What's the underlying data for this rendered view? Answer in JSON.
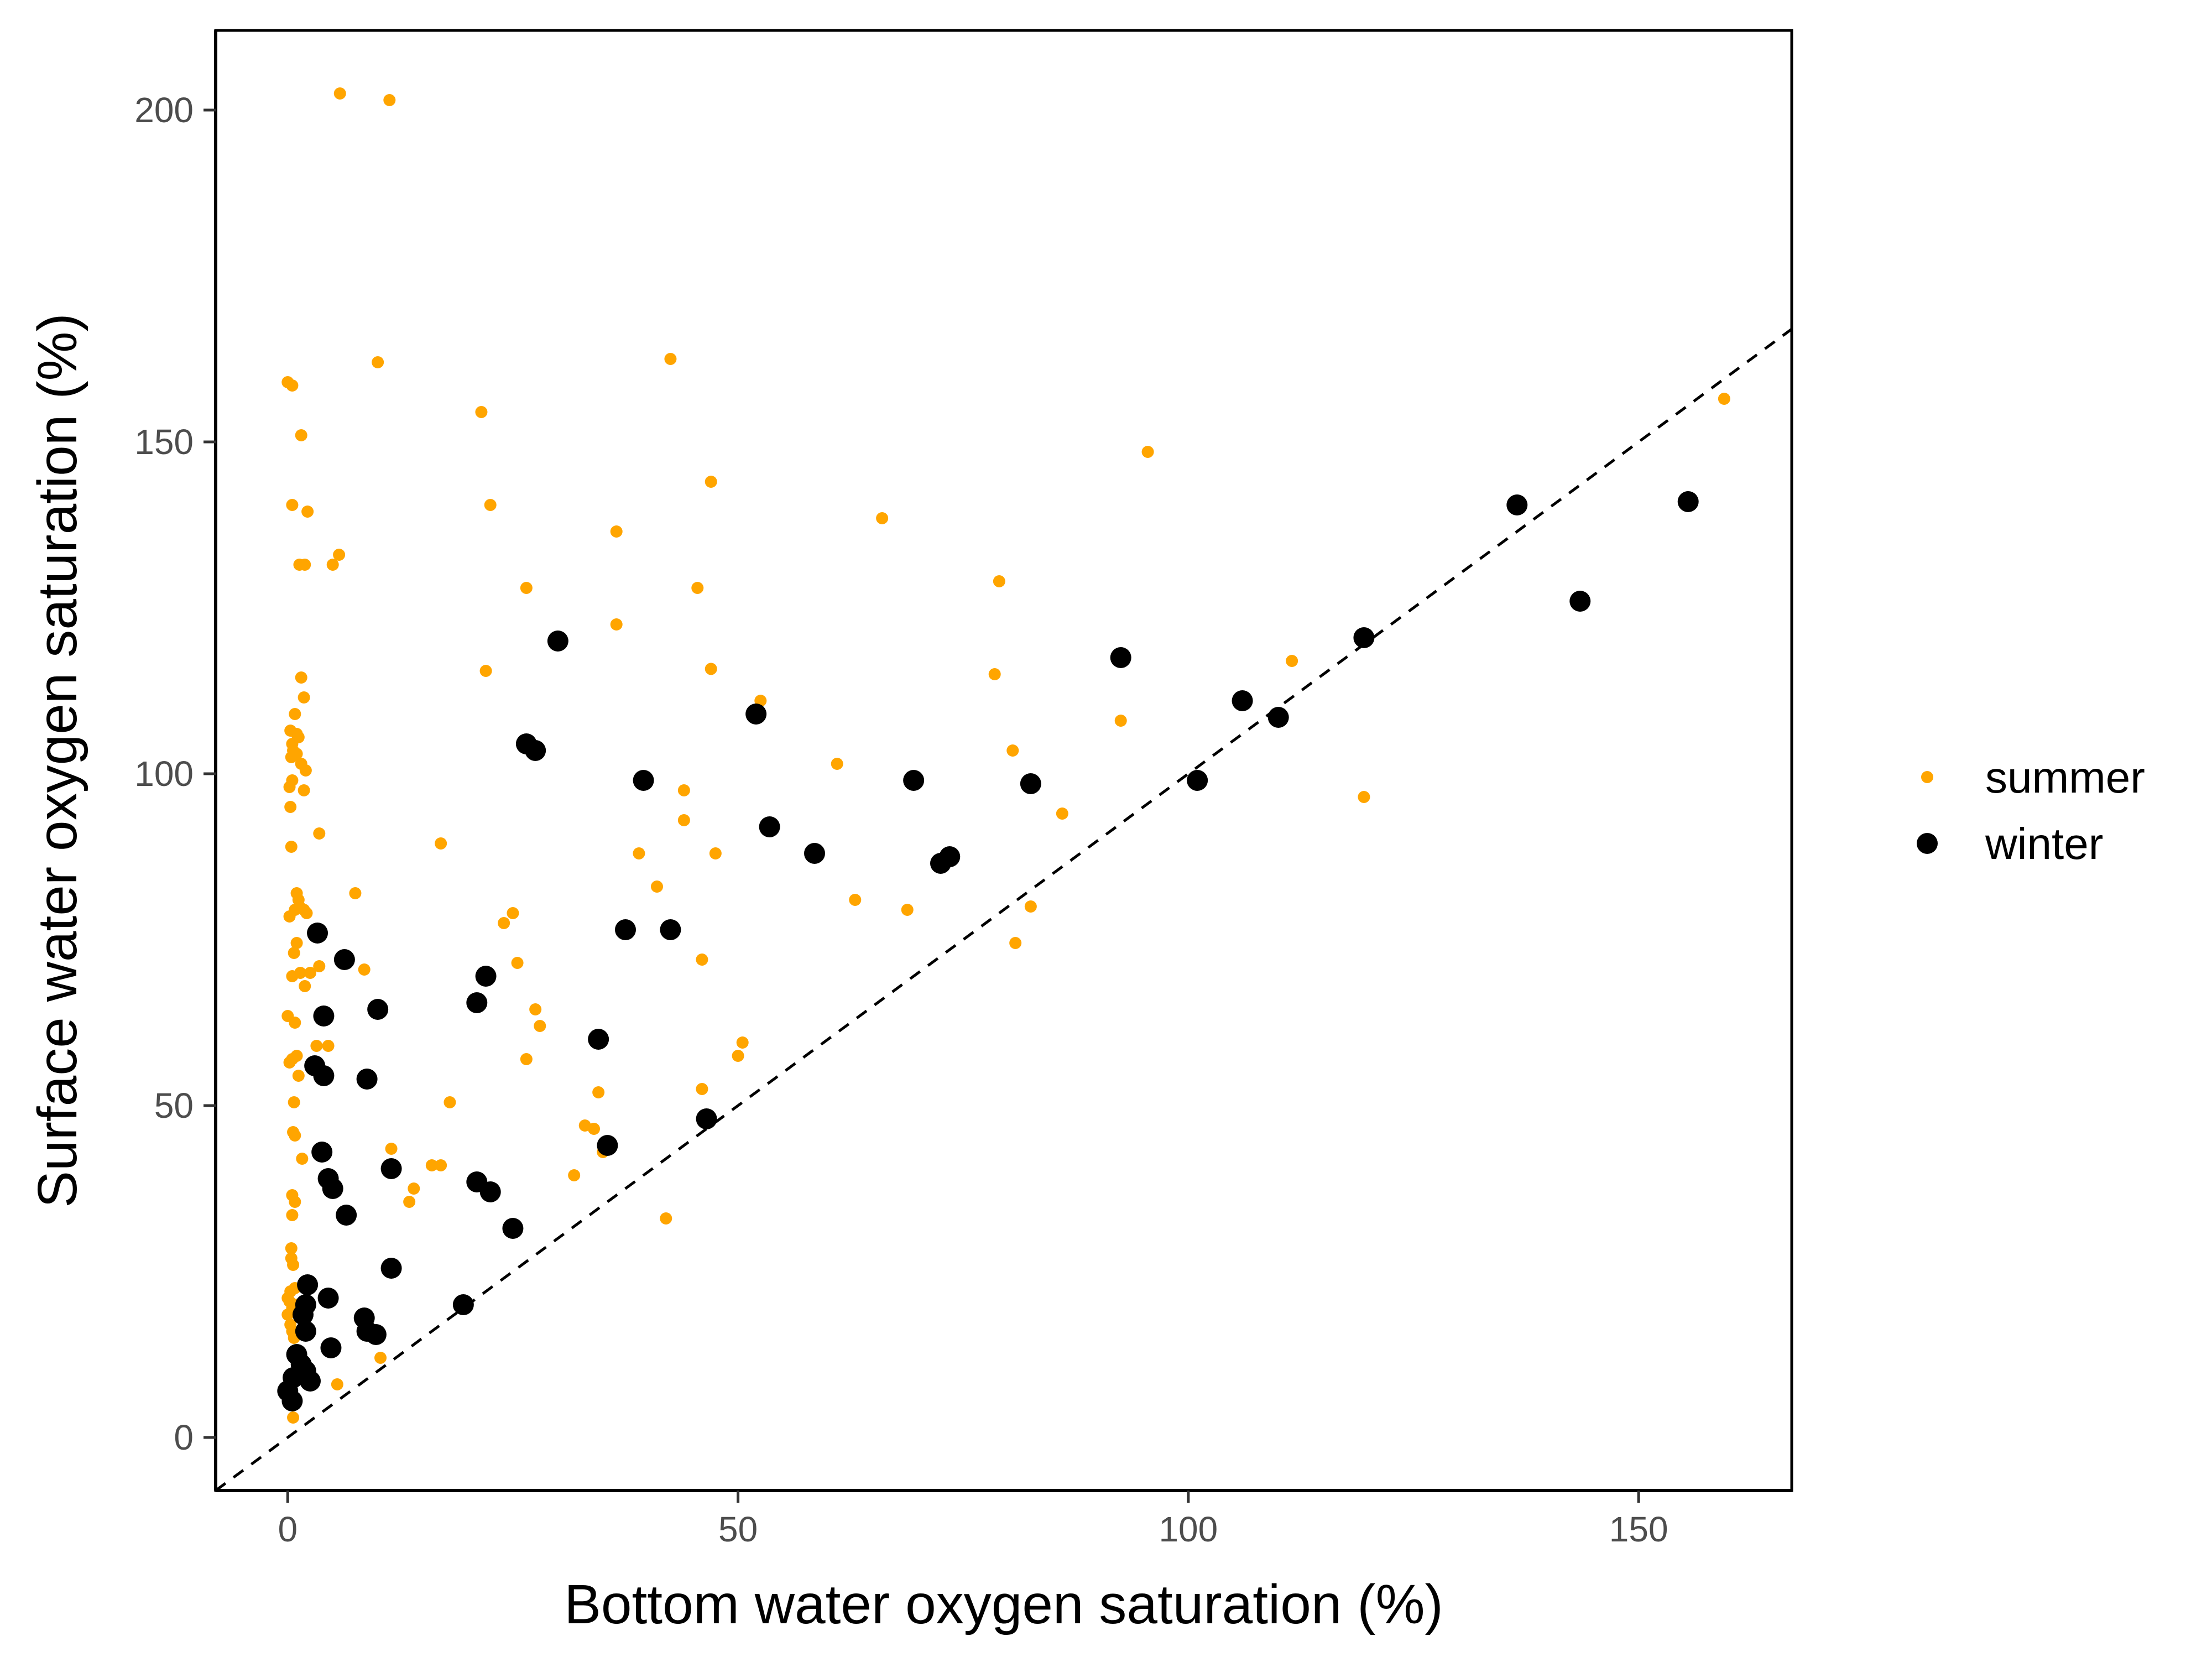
{
  "chart_data": {
    "type": "scatter",
    "title": "",
    "xlabel": "Bottom water oxygen saturation (%)",
    "ylabel": "Surface water oxygen saturation (%)",
    "xlim": [
      -8,
      167
    ],
    "ylim": [
      -8,
      212
    ],
    "x_ticks": [
      0,
      50,
      100,
      150
    ],
    "y_ticks": [
      0,
      50,
      100,
      150,
      200
    ],
    "x_tick_labels": [
      "0",
      "50",
      "100",
      "150"
    ],
    "y_tick_labels": [
      "0",
      "50",
      "100",
      "150",
      "200"
    ],
    "grid": false,
    "legend_position": "right",
    "reference_line": {
      "style": "dashed",
      "slope": 1,
      "intercept": 0,
      "color": "#000000"
    },
    "series": [
      {
        "name": "summer",
        "color": "#FFA500",
        "marker_size": "small",
        "points": [
          [
            5.8,
            202.5
          ],
          [
            11.3,
            201.5
          ],
          [
            42.5,
            162.5
          ],
          [
            10.0,
            162.0
          ],
          [
            0.0,
            159.0
          ],
          [
            0.5,
            158.5
          ],
          [
            21.5,
            154.5
          ],
          [
            1.5,
            151.0
          ],
          [
            95.5,
            148.5
          ],
          [
            159.5,
            156.5
          ],
          [
            47.0,
            144.0
          ],
          [
            0.5,
            140.5
          ],
          [
            22.5,
            140.5
          ],
          [
            2.2,
            139.5
          ],
          [
            66.0,
            138.5
          ],
          [
            36.5,
            136.5
          ],
          [
            5.7,
            133.0
          ],
          [
            5.0,
            131.5
          ],
          [
            1.3,
            131.5
          ],
          [
            1.9,
            131.5
          ],
          [
            79.0,
            129.0
          ],
          [
            26.5,
            128.0
          ],
          [
            45.5,
            128.0
          ],
          [
            36.5,
            122.5
          ],
          [
            111.5,
            117.0
          ],
          [
            92.5,
            117.5
          ],
          [
            1.5,
            114.5
          ],
          [
            22.0,
            115.5
          ],
          [
            47.0,
            115.8
          ],
          [
            78.5,
            115.0
          ],
          [
            1.8,
            111.5
          ],
          [
            52.5,
            111.0
          ],
          [
            0.8,
            109.0
          ],
          [
            92.5,
            108.0
          ],
          [
            0.3,
            106.5
          ],
          [
            1.0,
            106.0
          ],
          [
            0.5,
            104.5
          ],
          [
            1.2,
            105.5
          ],
          [
            0.6,
            103.5
          ],
          [
            0.4,
            102.5
          ],
          [
            1.0,
            103.0
          ],
          [
            80.5,
            103.5
          ],
          [
            1.5,
            101.5
          ],
          [
            2.0,
            100.5
          ],
          [
            61.0,
            101.5
          ],
          [
            0.5,
            99.0
          ],
          [
            0.2,
            98.0
          ],
          [
            1.8,
            97.5
          ],
          [
            44.0,
            97.5
          ],
          [
            119.5,
            96.5
          ],
          [
            0.3,
            95.0
          ],
          [
            86.0,
            94.0
          ],
          [
            44.0,
            93.0
          ],
          [
            3.5,
            91.0
          ],
          [
            0.4,
            89.0
          ],
          [
            17.0,
            89.5
          ],
          [
            39.0,
            88.0
          ],
          [
            47.5,
            88.0
          ],
          [
            1.0,
            82.0
          ],
          [
            7.5,
            82.0
          ],
          [
            41.0,
            83.0
          ],
          [
            1.2,
            81.0
          ],
          [
            63.0,
            81.0
          ],
          [
            0.8,
            79.5
          ],
          [
            1.3,
            80.0
          ],
          [
            1.8,
            79.5
          ],
          [
            2.1,
            79.0
          ],
          [
            0.2,
            78.5
          ],
          [
            25.0,
            79.0
          ],
          [
            68.8,
            79.5
          ],
          [
            82.5,
            80.0
          ],
          [
            24.0,
            77.5
          ],
          [
            80.8,
            74.5
          ],
          [
            1.0,
            74.5
          ],
          [
            0.7,
            73.0
          ],
          [
            46.0,
            72.0
          ],
          [
            25.5,
            71.5
          ],
          [
            3.5,
            71.0
          ],
          [
            8.5,
            70.5
          ],
          [
            0.5,
            69.5
          ],
          [
            1.4,
            70.0
          ],
          [
            2.5,
            70.0
          ],
          [
            1.9,
            68.0
          ],
          [
            27.5,
            64.5
          ],
          [
            0.0,
            63.5
          ],
          [
            0.8,
            62.5
          ],
          [
            28.0,
            62.0
          ],
          [
            50.5,
            59.5
          ],
          [
            3.2,
            59.0
          ],
          [
            4.5,
            59.0
          ],
          [
            50.0,
            57.5
          ],
          [
            0.5,
            57.0
          ],
          [
            26.5,
            57.0
          ],
          [
            1.0,
            57.5
          ],
          [
            2.6,
            56.0
          ],
          [
            0.2,
            56.5
          ],
          [
            1.2,
            54.5
          ],
          [
            34.5,
            52.0
          ],
          [
            46.0,
            52.5
          ],
          [
            0.7,
            50.5
          ],
          [
            18.0,
            50.5
          ],
          [
            33.0,
            47.0
          ],
          [
            34.0,
            46.5
          ],
          [
            0.6,
            46.0
          ],
          [
            0.8,
            45.5
          ],
          [
            11.5,
            43.5
          ],
          [
            35.0,
            43.0
          ],
          [
            1.6,
            42.0
          ],
          [
            17.0,
            41.0
          ],
          [
            16.0,
            41.0
          ],
          [
            14.0,
            37.5
          ],
          [
            0.5,
            36.5
          ],
          [
            0.8,
            35.5
          ],
          [
            13.5,
            35.5
          ],
          [
            31.8,
            39.5
          ],
          [
            0.5,
            33.5
          ],
          [
            42.0,
            33.0
          ],
          [
            0.4,
            28.5
          ],
          [
            0.4,
            27.0
          ],
          [
            0.6,
            26.0
          ],
          [
            0.3,
            22.0
          ],
          [
            0.8,
            22.5
          ],
          [
            0.0,
            21.0
          ],
          [
            0.2,
            20.5
          ],
          [
            1.0,
            20.0
          ],
          [
            0.5,
            19.5
          ],
          [
            0.0,
            18.5
          ],
          [
            0.3,
            17.0
          ],
          [
            0.5,
            16.0
          ],
          [
            0.7,
            15.0
          ],
          [
            10.3,
            12.0
          ],
          [
            5.5,
            8.0
          ],
          [
            1.0,
            9.0
          ],
          [
            0.6,
            3.0
          ]
        ]
      },
      {
        "name": "winter",
        "color": "#000000",
        "marker_size": "large",
        "points": [
          [
            155.5,
            141.0
          ],
          [
            136.5,
            140.5
          ],
          [
            143.5,
            126.0
          ],
          [
            119.5,
            120.5
          ],
          [
            92.5,
            117.5
          ],
          [
            30.0,
            120.0
          ],
          [
            106.0,
            111.0
          ],
          [
            110.0,
            108.5
          ],
          [
            52.0,
            109.0
          ],
          [
            26.5,
            104.5
          ],
          [
            27.5,
            103.5
          ],
          [
            39.5,
            99.0
          ],
          [
            69.5,
            99.0
          ],
          [
            82.5,
            98.5
          ],
          [
            101.0,
            99.0
          ],
          [
            53.5,
            92.0
          ],
          [
            58.5,
            88.0
          ],
          [
            73.5,
            87.5
          ],
          [
            72.5,
            86.5
          ],
          [
            37.5,
            76.5
          ],
          [
            42.5,
            76.5
          ],
          [
            3.3,
            76.0
          ],
          [
            6.3,
            72.0
          ],
          [
            22.0,
            69.5
          ],
          [
            21.0,
            65.5
          ],
          [
            10.0,
            64.5
          ],
          [
            4.0,
            63.5
          ],
          [
            34.5,
            60.0
          ],
          [
            3.0,
            56.0
          ],
          [
            4.0,
            54.5
          ],
          [
            8.8,
            54.0
          ],
          [
            46.5,
            48.0
          ],
          [
            35.5,
            44.0
          ],
          [
            3.8,
            43.0
          ],
          [
            11.5,
            40.5
          ],
          [
            4.5,
            39.0
          ],
          [
            21.0,
            38.5
          ],
          [
            5.0,
            37.5
          ],
          [
            22.5,
            37.0
          ],
          [
            6.5,
            33.5
          ],
          [
            25.0,
            31.5
          ],
          [
            11.5,
            25.5
          ],
          [
            2.2,
            23.0
          ],
          [
            4.5,
            21.0
          ],
          [
            19.5,
            20.0
          ],
          [
            2.0,
            20.0
          ],
          [
            1.7,
            18.5
          ],
          [
            8.5,
            18.0
          ],
          [
            2.0,
            16.0
          ],
          [
            8.8,
            16.0
          ],
          [
            9.8,
            15.5
          ],
          [
            4.8,
            13.5
          ],
          [
            1.0,
            12.5
          ],
          [
            1.5,
            11.0
          ],
          [
            2.0,
            10.0
          ],
          [
            1.5,
            9.5
          ],
          [
            0.6,
            9.0
          ],
          [
            2.5,
            8.5
          ],
          [
            0.0,
            7.0
          ],
          [
            0.5,
            5.5
          ]
        ]
      }
    ]
  }
}
